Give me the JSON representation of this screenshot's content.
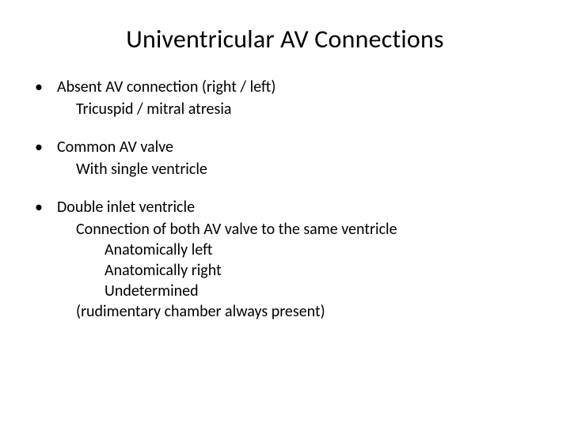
{
  "slide": {
    "title": "Univentricular AV Connections",
    "background_color": "#ffffff",
    "text_color": "#000000",
    "title_fontsize": 32,
    "body_fontsize": 20,
    "font_family": "Calibri",
    "bullets": [
      {
        "main": " Absent AV connection (right / left)",
        "sub1": "Tricuspid / mitral atresia"
      },
      {
        "main": " Common AV valve",
        "sub1": "With single ventricle"
      },
      {
        "main": "Double inlet ventricle",
        "sub1": "Connection of both AV valve to the same ventricle",
        "sub2a": "Anatomically left",
        "sub2b": "Anatomically right",
        "sub2c": "Undetermined",
        "sub1b": "(rudimentary chamber always present)"
      }
    ],
    "bullet_char": "•"
  }
}
